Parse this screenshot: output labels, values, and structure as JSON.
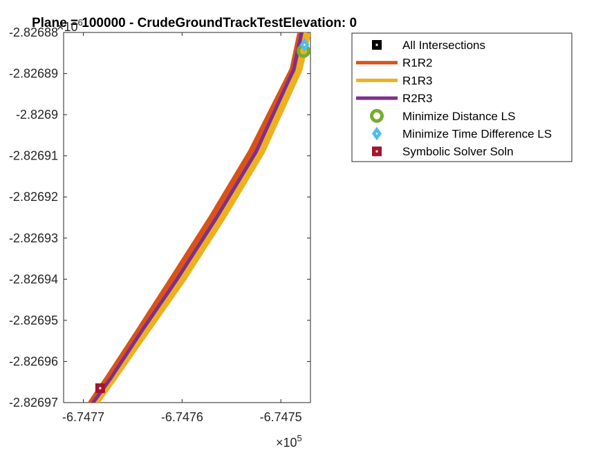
{
  "chart_data": {
    "type": "line",
    "title": "Plane = 100000 - CrudeGroundTrackTestElevation: 0",
    "xlabel": "",
    "ylabel": "",
    "x_exponent": {
      "times": "×10",
      "power": "5"
    },
    "y_exponent": {
      "times": "×10",
      "power": "6"
    },
    "xlim": [
      -6.74772,
      -6.74747
    ],
    "ylim": [
      -2.82697,
      -2.82688
    ],
    "x_ticks": [
      -6.7477,
      -6.7476,
      -6.7475
    ],
    "x_tick_labels": [
      "-6.7477",
      "-6.7476",
      "-6.7475"
    ],
    "y_ticks": [
      -2.82697,
      -2.82696,
      -2.82695,
      -2.82694,
      -2.82693,
      -2.82692,
      -2.82691,
      -2.8269,
      -2.82689,
      -2.82688
    ],
    "y_tick_labels": [
      "-2.82697",
      "-2.82696",
      "-2.82695",
      "-2.82694",
      "-2.82693",
      "-2.82692",
      "-2.82691",
      "-2.8269",
      "-2.82689",
      "-2.82688"
    ],
    "grid": false,
    "legend_position": "outside-top-right",
    "series": [
      {
        "name": "All Intersections",
        "kind": "marker",
        "marker": "square",
        "color": "#000000",
        "x": [],
        "y": []
      },
      {
        "name": "R1R2",
        "kind": "line",
        "color": "#D95319",
        "x": [
          -6.747692,
          -6.747675,
          -6.747645,
          -6.74761,
          -6.74757,
          -6.74753,
          -6.747488,
          -6.74748
        ],
        "y": [
          -2.82697,
          -2.826964,
          -2.826953,
          -2.82694,
          -2.826925,
          -2.826909,
          -2.826889,
          -2.82688
        ]
      },
      {
        "name": "R1R3",
        "kind": "line",
        "color": "#EDB120",
        "x": [
          -6.747688,
          -6.74767,
          -6.747638,
          -6.7476,
          -6.74756,
          -6.74752,
          -6.747482,
          -6.747473
        ],
        "y": [
          -2.82697,
          -2.826964,
          -2.826953,
          -2.82694,
          -2.826925,
          -2.826909,
          -2.826889,
          -2.82688
        ]
      },
      {
        "name": "R2R3",
        "kind": "line",
        "color": "#7E2F8E",
        "x": [
          -6.74769,
          -6.747672,
          -6.747642,
          -6.747605,
          -6.747565,
          -6.747525,
          -6.747487,
          -6.747479
        ],
        "y": [
          -2.82697,
          -2.826964,
          -2.826953,
          -2.82694,
          -2.826925,
          -2.826909,
          -2.826889,
          -2.82688
        ]
      },
      {
        "name": "Minimize Distance LS",
        "kind": "marker",
        "marker": "circle",
        "color": "#77AC30",
        "x": [
          -6.747477
        ],
        "y": [
          -2.8268845
        ]
      },
      {
        "name": "Minimize Time Difference LS",
        "kind": "marker",
        "marker": "diamond",
        "color": "#4DBEEE",
        "x": [
          -6.747476
        ],
        "y": [
          -2.826883
        ]
      },
      {
        "name": "Symbolic Solver Soln",
        "kind": "marker",
        "marker": "square",
        "color": "#A2142F",
        "x": [
          -6.747683
        ],
        "y": [
          -2.8269665
        ]
      }
    ]
  }
}
